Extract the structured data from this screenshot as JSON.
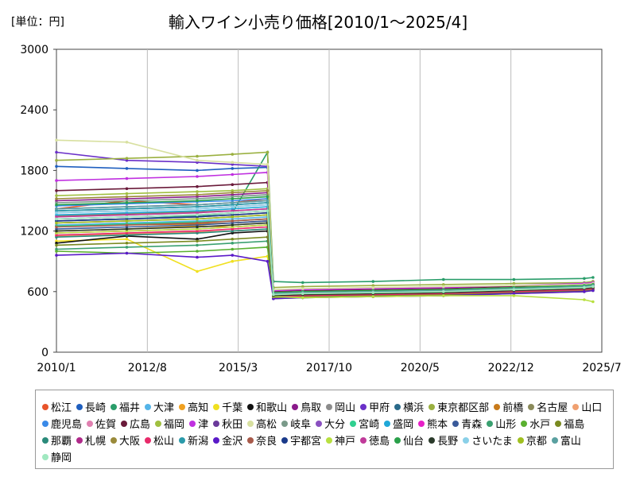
{
  "unit_label": "[単位：円]",
  "chart_data": {
    "type": "line",
    "title": "輸入ワイン小売り価格[2010/1～2025/4]",
    "xlabel": "",
    "ylabel": "",
    "x_ticks": [
      "2010/1",
      "2012/8",
      "2015/3",
      "2017/10",
      "2020/5",
      "2022/12",
      "2025/7"
    ],
    "y_ticks": [
      0,
      600,
      1200,
      1800,
      2400,
      3000
    ],
    "ylim": [
      0,
      3000
    ],
    "xlim": [
      "2010/1",
      "2025/7"
    ],
    "grid": "vertical",
    "legend_position": "bottom",
    "x": [
      "2010/1",
      "2012/1",
      "2014/1",
      "2015/1",
      "2016/1",
      "2016/3",
      "2017/1",
      "2019/1",
      "2021/1",
      "2023/1",
      "2025/1",
      "2025/4"
    ],
    "series": [
      {
        "name": "松江",
        "color": "#e8542a",
        "values": [
          1420,
          1500,
          1460,
          1480,
          1520,
          560,
          570,
          580,
          600,
          640,
          680,
          700
        ]
      },
      {
        "name": "長崎",
        "color": "#1f5fbf",
        "values": [
          1840,
          1820,
          1800,
          1820,
          1830,
          600,
          610,
          620,
          630,
          650,
          670,
          680
        ]
      },
      {
        "name": "福井",
        "color": "#2a9d6a",
        "values": [
          1300,
          1320,
          1350,
          1380,
          1980,
          700,
          690,
          700,
          720,
          720,
          730,
          740
        ]
      },
      {
        "name": "大津",
        "color": "#54b4e8",
        "values": [
          1260,
          1280,
          1300,
          1320,
          1340,
          580,
          590,
          600,
          610,
          620,
          640,
          650
        ]
      },
      {
        "name": "高知",
        "color": "#f0a020",
        "values": [
          1200,
          1220,
          1250,
          1240,
          1260,
          560,
          570,
          580,
          600,
          620,
          650,
          660
        ]
      },
      {
        "name": "千葉",
        "color": "#f0e020",
        "values": [
          1100,
          1120,
          800,
          900,
          950,
          540,
          550,
          560,
          580,
          600,
          620,
          630
        ]
      },
      {
        "name": "和歌山",
        "color": "#111111",
        "values": [
          1080,
          1150,
          1120,
          1180,
          1200,
          550,
          540,
          560,
          570,
          590,
          600,
          620
        ]
      },
      {
        "name": "鳥取",
        "color": "#8a1a8a",
        "values": [
          1500,
          1520,
          1540,
          1560,
          1580,
          590,
          600,
          610,
          620,
          640,
          660,
          670
        ]
      },
      {
        "name": "岡山",
        "color": "#8c8c8c",
        "values": [
          1300,
          1320,
          1340,
          1360,
          1380,
          570,
          580,
          590,
          600,
          620,
          640,
          650
        ]
      },
      {
        "name": "甲府",
        "color": "#6a30c8",
        "values": [
          1980,
          1900,
          1880,
          1860,
          1840,
          620,
          610,
          620,
          630,
          640,
          650,
          660
        ]
      },
      {
        "name": "横浜",
        "color": "#2a6a8a",
        "values": [
          1400,
          1420,
          1440,
          1460,
          1480,
          600,
          610,
          620,
          630,
          640,
          660,
          670
        ]
      },
      {
        "name": "東京都区部",
        "color": "#9ab040",
        "values": [
          1900,
          1920,
          1940,
          1960,
          1980,
          640,
          650,
          660,
          670,
          680,
          690,
          700
        ]
      },
      {
        "name": "前橋",
        "color": "#c87a1a",
        "values": [
          1250,
          1260,
          1270,
          1280,
          1300,
          560,
          570,
          580,
          590,
          610,
          630,
          640
        ]
      },
      {
        "name": "名古屋",
        "color": "#8a8a5a",
        "values": [
          1350,
          1370,
          1390,
          1400,
          1420,
          580,
          590,
          600,
          610,
          630,
          650,
          660
        ]
      },
      {
        "name": "山口",
        "color": "#f0a070",
        "values": [
          1150,
          1170,
          1190,
          1200,
          1220,
          550,
          560,
          570,
          580,
          600,
          620,
          630
        ]
      },
      {
        "name": "鹿児島",
        "color": "#3a8ae8",
        "values": [
          1450,
          1470,
          1490,
          1500,
          1520,
          590,
          600,
          610,
          620,
          640,
          660,
          670
        ]
      },
      {
        "name": "佐賀",
        "color": "#e080b0",
        "values": [
          1380,
          1400,
          1420,
          1440,
          1460,
          580,
          590,
          600,
          610,
          630,
          650,
          660
        ]
      },
      {
        "name": "広島",
        "color": "#6a1a3a",
        "values": [
          1600,
          1620,
          1640,
          1660,
          1680,
          600,
          610,
          620,
          630,
          650,
          670,
          680
        ]
      },
      {
        "name": "福岡",
        "color": "#a0c040",
        "values": [
          1550,
          1570,
          1590,
          1600,
          1620,
          590,
          600,
          610,
          620,
          640,
          660,
          670
        ]
      },
      {
        "name": "津",
        "color": "#c030e0",
        "values": [
          1700,
          1720,
          1740,
          1760,
          1780,
          610,
          620,
          630,
          640,
          660,
          680,
          690
        ]
      },
      {
        "name": "秋田",
        "color": "#6a3a9a",
        "values": [
          1320,
          1340,
          1360,
          1380,
          1400,
          570,
          580,
          590,
          600,
          620,
          640,
          650
        ]
      },
      {
        "name": "高松",
        "color": "#d8e0a0",
        "values": [
          2100,
          2080,
          1900,
          1880,
          1860,
          620,
          630,
          640,
          650,
          660,
          670,
          680
        ]
      },
      {
        "name": "岐阜",
        "color": "#7a9a8a",
        "values": [
          1480,
          1500,
          1520,
          1540,
          1560,
          590,
          600,
          610,
          620,
          640,
          660,
          670
        ]
      },
      {
        "name": "大分",
        "color": "#8a50c0",
        "values": [
          1420,
          1440,
          1460,
          1480,
          1500,
          580,
          590,
          600,
          610,
          630,
          650,
          660
        ]
      },
      {
        "name": "宮崎",
        "color": "#30d090",
        "values": [
          1250,
          1270,
          1290,
          1300,
          1320,
          560,
          570,
          580,
          590,
          610,
          630,
          640
        ]
      },
      {
        "name": "盛岡",
        "color": "#20a8d8",
        "values": [
          1360,
          1380,
          1400,
          1420,
          1440,
          580,
          590,
          600,
          610,
          630,
          650,
          660
        ]
      },
      {
        "name": "熊本",
        "color": "#e820c8",
        "values": [
          1180,
          1200,
          1220,
          1240,
          1260,
          560,
          570,
          580,
          590,
          610,
          630,
          640
        ]
      },
      {
        "name": "青森",
        "color": "#3a5a9a",
        "values": [
          1220,
          1240,
          1260,
          1280,
          1300,
          560,
          570,
          580,
          590,
          610,
          630,
          640
        ]
      },
      {
        "name": "山形",
        "color": "#3aa070",
        "values": [
          1020,
          1040,
          1060,
          1080,
          1100,
          540,
          550,
          560,
          570,
          590,
          610,
          620
        ]
      },
      {
        "name": "水戸",
        "color": "#5ab030",
        "values": [
          1000,
          980,
          1000,
          1020,
          1040,
          530,
          540,
          550,
          560,
          580,
          600,
          610
        ]
      },
      {
        "name": "福島",
        "color": "#7a8a20",
        "values": [
          1060,
          1080,
          1100,
          1120,
          1140,
          540,
          550,
          560,
          570,
          590,
          610,
          620
        ]
      },
      {
        "name": "那覇",
        "color": "#2a8a7a",
        "values": [
          1140,
          1160,
          1180,
          1200,
          1220,
          550,
          560,
          570,
          580,
          600,
          620,
          630
        ]
      },
      {
        "name": "札幌",
        "color": "#b02a8a",
        "values": [
          1280,
          1300,
          1320,
          1340,
          1360,
          570,
          580,
          590,
          600,
          620,
          640,
          650
        ]
      },
      {
        "name": "大阪",
        "color": "#9a8a3a",
        "values": [
          1520,
          1540,
          1560,
          1580,
          1600,
          590,
          600,
          610,
          620,
          640,
          660,
          670
        ]
      },
      {
        "name": "松山",
        "color": "#e82a6a",
        "values": [
          1160,
          1180,
          1200,
          1220,
          1240,
          550,
          560,
          570,
          580,
          600,
          620,
          630
        ]
      },
      {
        "name": "新潟",
        "color": "#2a9aaa",
        "values": [
          1400,
          1420,
          1440,
          1460,
          1480,
          580,
          590,
          600,
          610,
          630,
          650,
          660
        ]
      },
      {
        "name": "金沢",
        "color": "#5a1ac8",
        "values": [
          960,
          980,
          940,
          960,
          900,
          530,
          540,
          550,
          560,
          580,
          600,
          610
        ]
      },
      {
        "name": "奈良",
        "color": "#a85a4a",
        "values": [
          1240,
          1260,
          1280,
          1300,
          1320,
          560,
          570,
          580,
          590,
          610,
          630,
          640
        ]
      },
      {
        "name": "宇都宮",
        "color": "#1a3a8a",
        "values": [
          1300,
          1320,
          1340,
          1360,
          1380,
          570,
          580,
          590,
          600,
          620,
          640,
          650
        ]
      },
      {
        "name": "神戸",
        "color": "#b8e040",
        "values": [
          1180,
          1200,
          1220,
          1240,
          1260,
          550,
          540,
          550,
          560,
          560,
          520,
          500
        ]
      },
      {
        "name": "徳島",
        "color": "#c03a9a",
        "values": [
          1340,
          1360,
          1380,
          1400,
          1420,
          570,
          580,
          590,
          600,
          620,
          640,
          650
        ]
      },
      {
        "name": "仙台",
        "color": "#2aa04a",
        "values": [
          1460,
          1480,
          1500,
          1520,
          1540,
          590,
          600,
          610,
          620,
          640,
          660,
          670
        ]
      },
      {
        "name": "長野",
        "color": "#2a3a2a",
        "values": [
          1200,
          1220,
          1240,
          1260,
          1280,
          560,
          570,
          580,
          590,
          610,
          630,
          640
        ]
      },
      {
        "name": "さいたま",
        "color": "#8ad0e8",
        "values": [
          1380,
          1400,
          1420,
          1440,
          1460,
          580,
          590,
          600,
          610,
          630,
          650,
          660
        ]
      },
      {
        "name": "京都",
        "color": "#a0c020",
        "values": [
          1280,
          1300,
          1320,
          1340,
          1360,
          570,
          580,
          590,
          600,
          620,
          640,
          650
        ]
      },
      {
        "name": "富山",
        "color": "#5aa0a0",
        "values": [
          1420,
          1440,
          1460,
          1480,
          1500,
          580,
          590,
          600,
          610,
          630,
          650,
          660
        ]
      },
      {
        "name": "静岡",
        "color": "#a0e8c0",
        "values": [
          1320,
          1340,
          1360,
          1380,
          1400,
          570,
          580,
          590,
          600,
          620,
          640,
          650
        ]
      }
    ]
  }
}
